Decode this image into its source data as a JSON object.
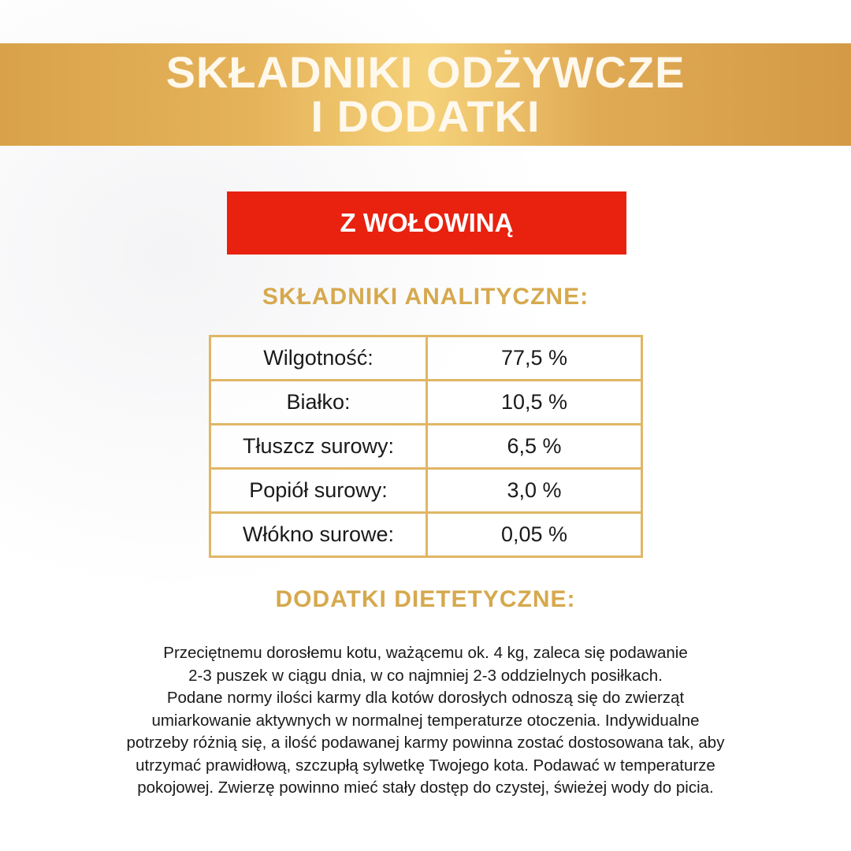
{
  "header": {
    "title_lines": [
      "SKŁADNIKI ODŻYWCZE",
      "I DODATKI"
    ]
  },
  "variant_label": "Z WOŁOWINĄ",
  "analytical": {
    "heading": "SKŁADNIKI ANALITYCZNE:",
    "rows": [
      {
        "label": "Wilgotność:",
        "value": "77,5 %"
      },
      {
        "label": "Białko:",
        "value": "10,5 %"
      },
      {
        "label": "Tłuszcz surowy:",
        "value": "6,5 %"
      },
      {
        "label": "Popiół surowy:",
        "value": "3,0 %"
      },
      {
        "label": "Włókno surowe:",
        "value": "0,05 %"
      }
    ]
  },
  "dietary": {
    "heading": "DODATKI DIETETYCZNE:",
    "lines": [
      "Przeciętnemu dorosłemu kotu, ważącemu ok. 4 kg, zaleca się podawanie",
      "2-3 puszek w ciągu dnia, w co najmniej 2-3 oddzielnych posiłkach.",
      "Podane normy ilości karmy dla kotów dorosłych odnoszą się do zwierząt",
      "umiarkowanie aktywnych w normalnej temperaturze otoczenia. Indywidualne",
      "potrzeby różnią się, a ilość podawanej karmy powinna zostać dostosowana tak, aby",
      "utrzymać prawidłową, szczupłą sylwetkę Twojego kota. Podawać w temperaturze",
      "pokojowej. Zwierzę powinno mieć stały dostęp do czystej, świeżej wody do picia."
    ]
  },
  "colors": {
    "gold": "#e0b665",
    "red": "#e8220f"
  }
}
